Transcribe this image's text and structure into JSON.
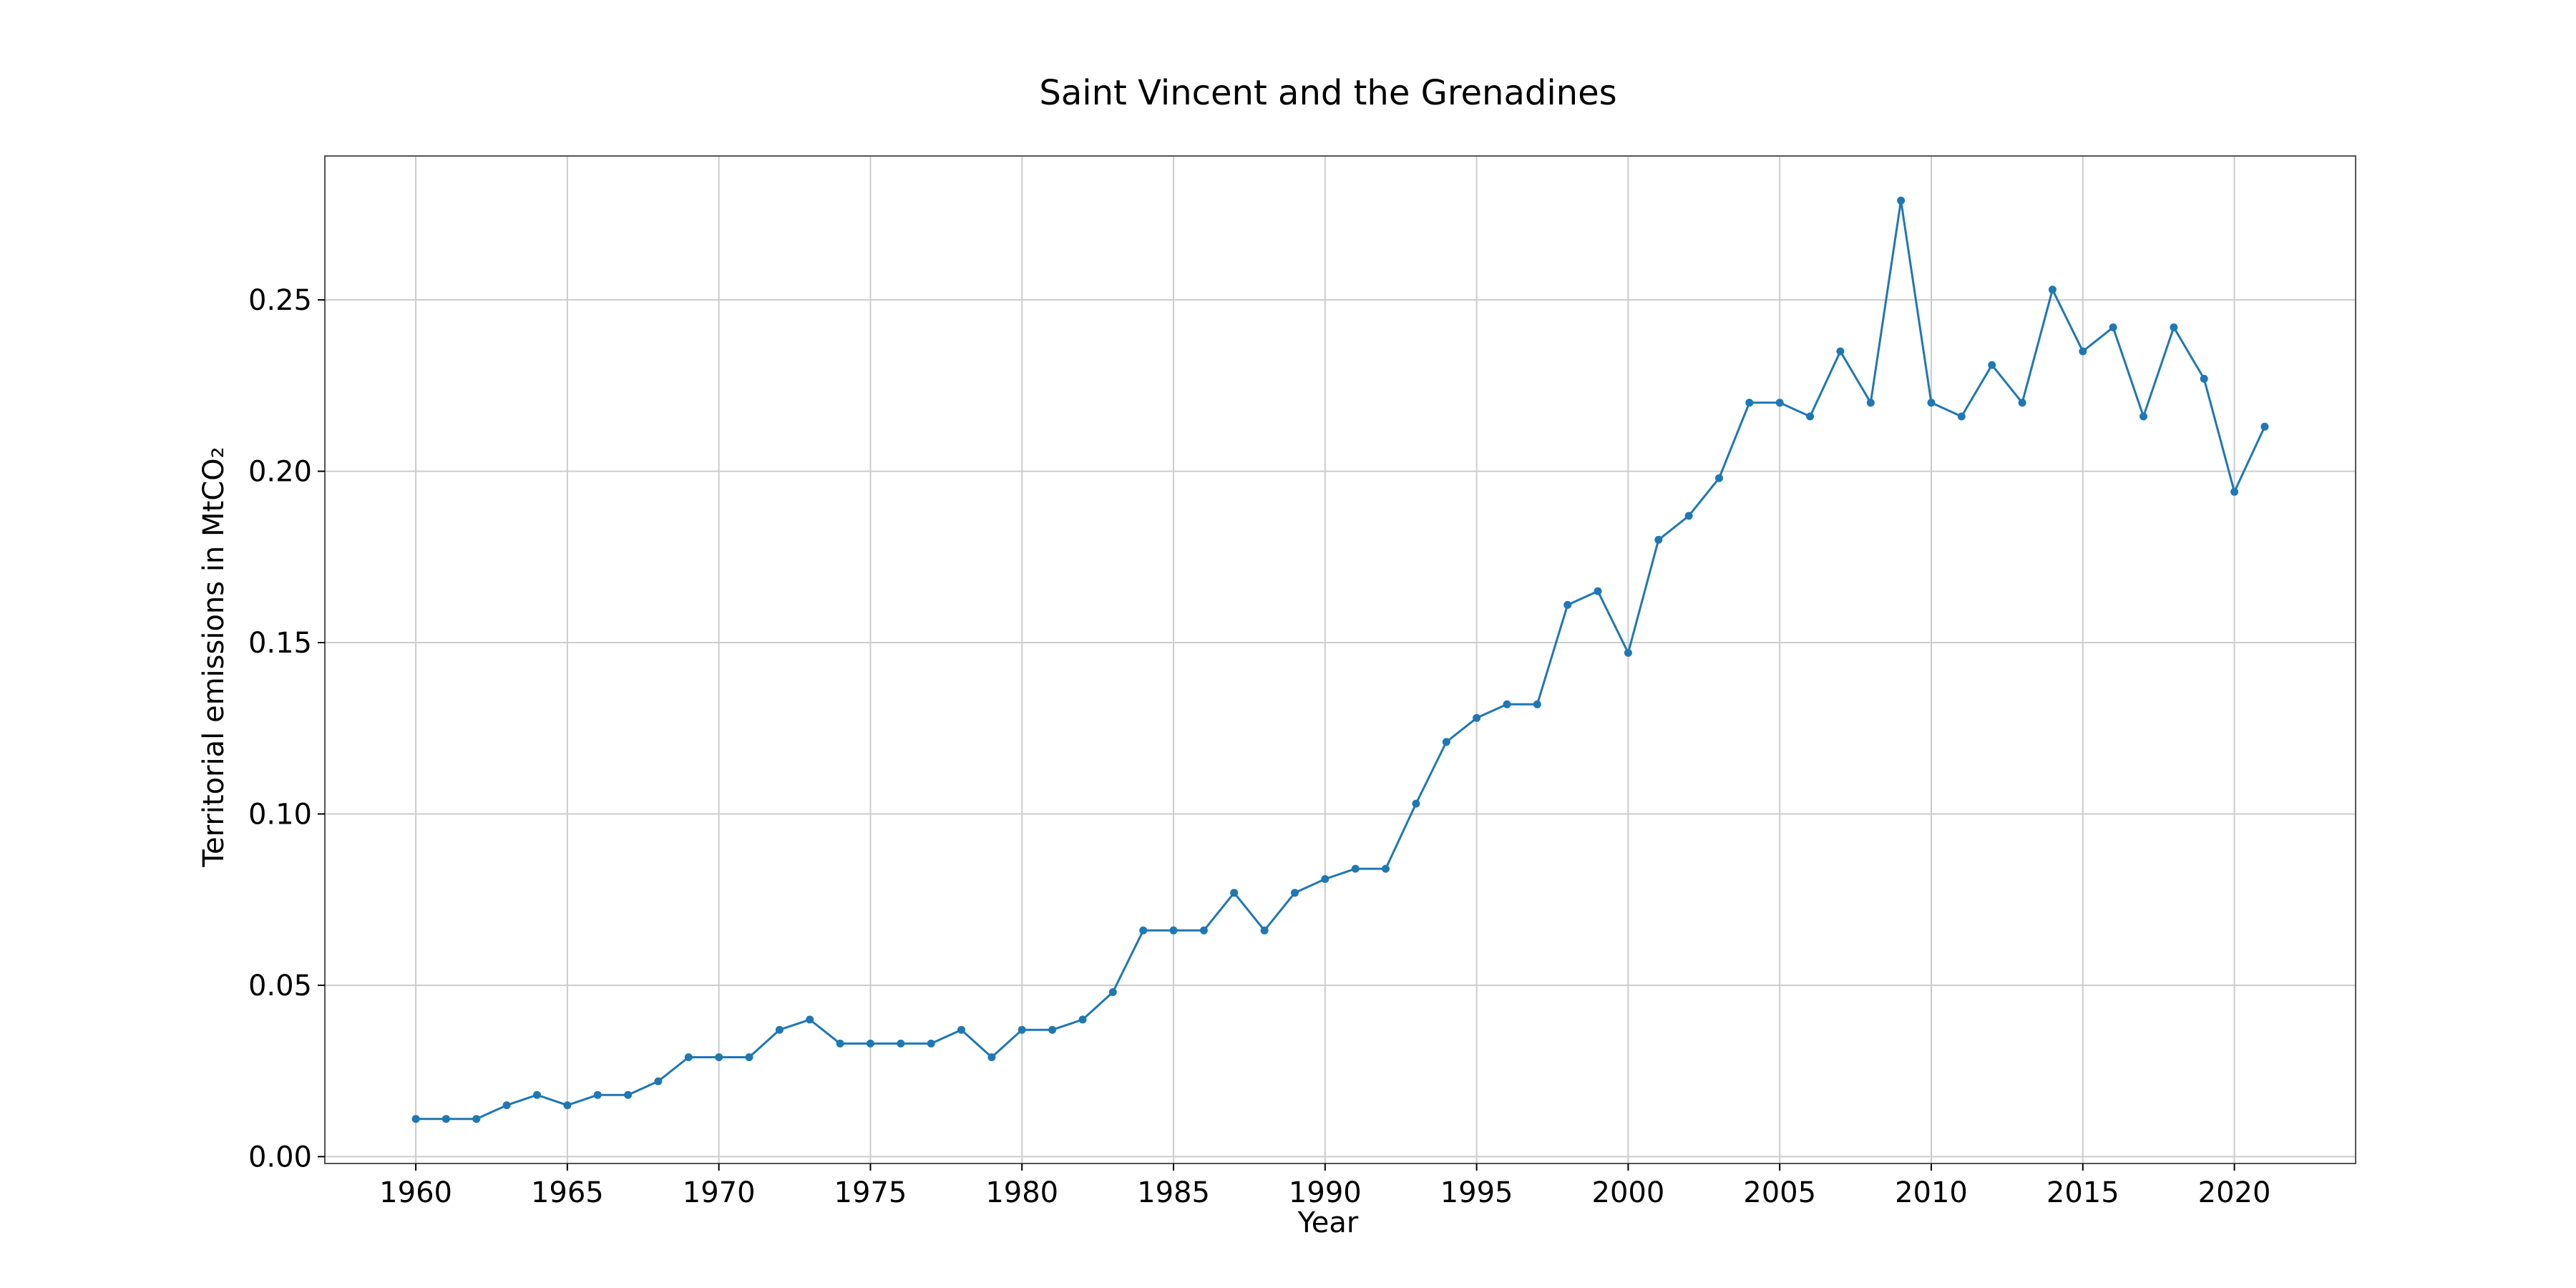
{
  "chart_data": {
    "type": "line",
    "title": "Saint Vincent and the Grenadines",
    "xlabel": "Year",
    "ylabel": "Territorial emissions in MtCO₂",
    "xlim": [
      1957,
      2024
    ],
    "ylim": [
      -0.002,
      0.292
    ],
    "x_ticks": [
      1960,
      1965,
      1970,
      1975,
      1980,
      1985,
      1990,
      1995,
      2000,
      2005,
      2010,
      2015,
      2020
    ],
    "y_ticks": [
      0.0,
      0.05,
      0.1,
      0.15,
      0.2,
      0.25
    ],
    "y_tick_labels": [
      "0.00",
      "0.05",
      "0.10",
      "0.15",
      "0.20",
      "0.25"
    ],
    "grid": true,
    "colors": {
      "series": "#1f77b4",
      "grid": "#cccccc",
      "frame": "#555555"
    },
    "series": [
      {
        "x": [
          1960,
          1961,
          1962,
          1963,
          1964,
          1965,
          1966,
          1967,
          1968,
          1969,
          1970,
          1971,
          1972,
          1973,
          1974,
          1975,
          1976,
          1977,
          1978,
          1979,
          1980,
          1981,
          1982,
          1983,
          1984,
          1985,
          1986,
          1987,
          1988,
          1989,
          1990,
          1991,
          1992,
          1993,
          1994,
          1995,
          1996,
          1997,
          1998,
          1999,
          2000,
          2001,
          2002,
          2003,
          2004,
          2005,
          2006,
          2007,
          2008,
          2009,
          2010,
          2011,
          2012,
          2013,
          2014,
          2015,
          2016,
          2017,
          2018,
          2019,
          2020,
          2021
        ],
        "values": [
          0.011,
          0.011,
          0.011,
          0.015,
          0.018,
          0.015,
          0.018,
          0.018,
          0.022,
          0.029,
          0.029,
          0.029,
          0.037,
          0.04,
          0.033,
          0.033,
          0.033,
          0.033,
          0.037,
          0.029,
          0.037,
          0.037,
          0.04,
          0.048,
          0.066,
          0.066,
          0.066,
          0.077,
          0.066,
          0.077,
          0.081,
          0.084,
          0.084,
          0.103,
          0.121,
          0.128,
          0.132,
          0.132,
          0.161,
          0.165,
          0.147,
          0.18,
          0.187,
          0.198,
          0.22,
          0.22,
          0.216,
          0.235,
          0.22,
          0.279,
          0.22,
          0.216,
          0.231,
          0.22,
          0.253,
          0.235,
          0.242,
          0.216,
          0.242,
          0.227,
          0.194,
          0.213
        ]
      }
    ]
  }
}
